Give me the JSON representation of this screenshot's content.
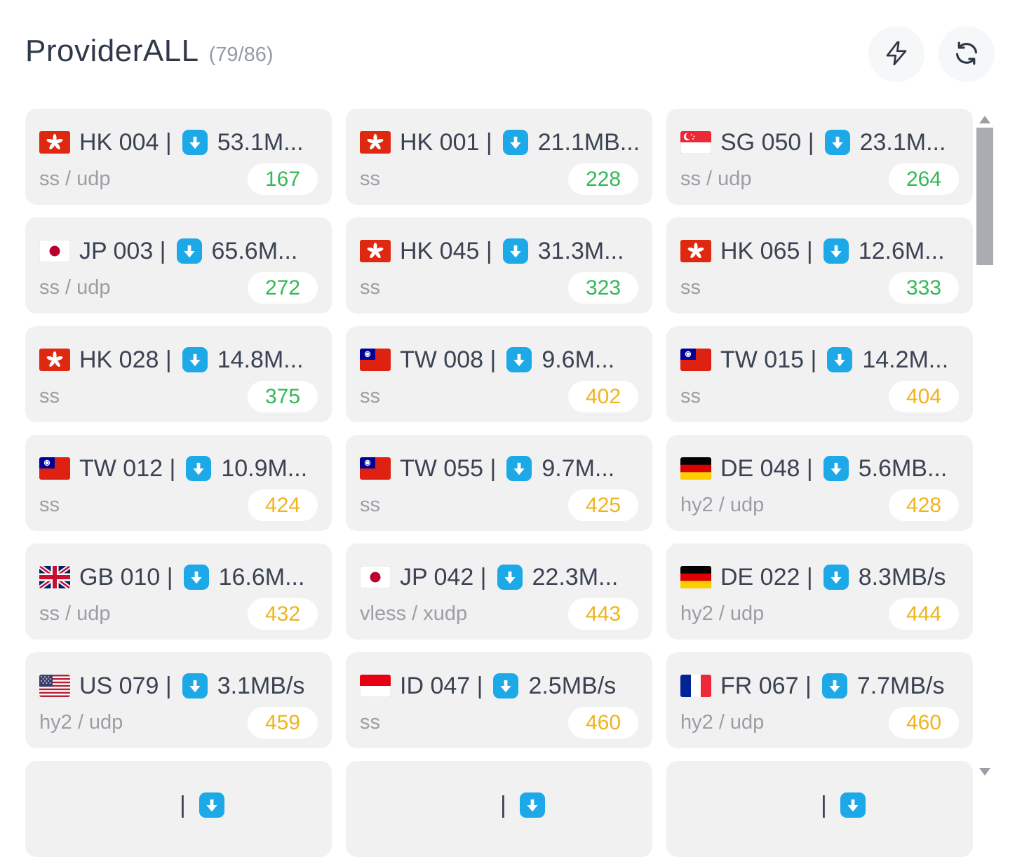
{
  "header": {
    "title": "ProviderALL",
    "count": "(79/86)"
  },
  "toolbar": {
    "speedtest_icon": "lightning-bolt-icon",
    "refresh_icon": "refresh-arrows-icon"
  },
  "colors": {
    "latency_good": "#35b857",
    "latency_medium": "#efb41e",
    "download_icon_blue": "#1da9e8"
  },
  "cards": [
    {
      "flag": "hk",
      "name": "HK 004 |",
      "speed": "53.1M...",
      "protocol": "ss / udp",
      "latency": "167",
      "latency_level": "green"
    },
    {
      "flag": "hk",
      "name": "HK 001 |",
      "speed": "21.1MB...",
      "protocol": "ss",
      "latency": "228",
      "latency_level": "green"
    },
    {
      "flag": "sg",
      "name": "SG 050 |",
      "speed": "23.1M...",
      "protocol": "ss / udp",
      "latency": "264",
      "latency_level": "green"
    },
    {
      "flag": "jp",
      "name": "JP 003 |",
      "speed": "65.6M...",
      "protocol": "ss / udp",
      "latency": "272",
      "latency_level": "green"
    },
    {
      "flag": "hk",
      "name": "HK 045 |",
      "speed": "31.3M...",
      "protocol": "ss",
      "latency": "323",
      "latency_level": "green"
    },
    {
      "flag": "hk",
      "name": "HK 065 |",
      "speed": "12.6M...",
      "protocol": "ss",
      "latency": "333",
      "latency_level": "green"
    },
    {
      "flag": "hk",
      "name": "HK 028 |",
      "speed": "14.8M...",
      "protocol": "ss",
      "latency": "375",
      "latency_level": "green"
    },
    {
      "flag": "tw",
      "name": "TW 008 |",
      "speed": "9.6M...",
      "protocol": "ss",
      "latency": "402",
      "latency_level": "yellow"
    },
    {
      "flag": "tw",
      "name": "TW 015 |",
      "speed": "14.2M...",
      "protocol": "ss",
      "latency": "404",
      "latency_level": "yellow"
    },
    {
      "flag": "tw",
      "name": "TW 012 |",
      "speed": "10.9M...",
      "protocol": "ss",
      "latency": "424",
      "latency_level": "yellow"
    },
    {
      "flag": "tw",
      "name": "TW 055 |",
      "speed": "9.7M...",
      "protocol": "ss",
      "latency": "425",
      "latency_level": "yellow"
    },
    {
      "flag": "de",
      "name": "DE 048 |",
      "speed": "5.6MB...",
      "protocol": "hy2 / udp",
      "latency": "428",
      "latency_level": "yellow"
    },
    {
      "flag": "gb",
      "name": "GB 010 |",
      "speed": "16.6M...",
      "protocol": "ss / udp",
      "latency": "432",
      "latency_level": "yellow"
    },
    {
      "flag": "jp",
      "name": "JP 042 |",
      "speed": "22.3M...",
      "protocol": "vless / xudp",
      "latency": "443",
      "latency_level": "yellow"
    },
    {
      "flag": "de",
      "name": "DE 022 |",
      "speed": "8.3MB/s",
      "protocol": "hy2 / udp",
      "latency": "444",
      "latency_level": "yellow"
    },
    {
      "flag": "us",
      "name": "US 079 |",
      "speed": "3.1MB/s",
      "protocol": "hy2 / udp",
      "latency": "459",
      "latency_level": "yellow"
    },
    {
      "flag": "id",
      "name": "ID 047 |",
      "speed": "2.5MB/s",
      "protocol": "ss",
      "latency": "460",
      "latency_level": "yellow"
    },
    {
      "flag": "fr",
      "name": "FR 067 |",
      "speed": "7.7MB/s",
      "protocol": "hy2 / udp",
      "latency": "460",
      "latency_level": "yellow"
    }
  ],
  "partial_row": {
    "separator": "|",
    "count": 3
  }
}
